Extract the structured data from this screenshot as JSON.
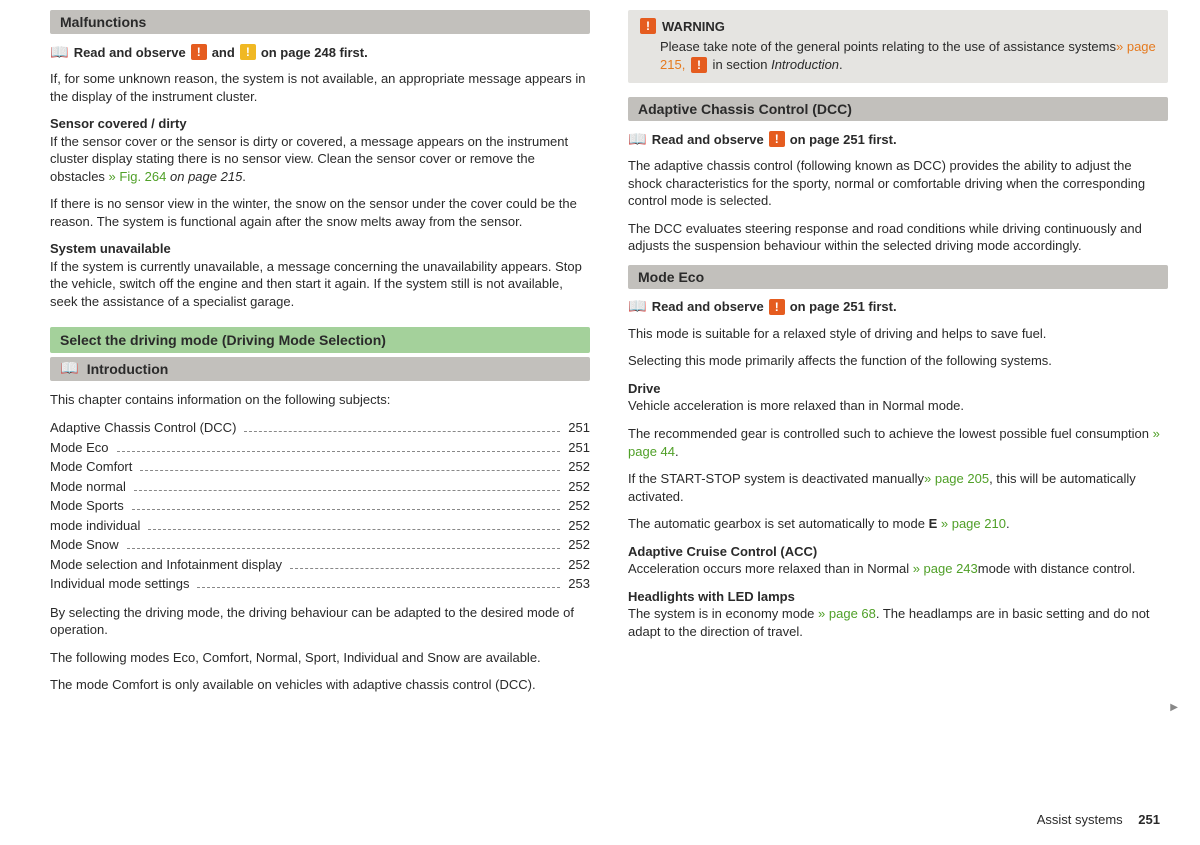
{
  "left": {
    "malfunctions": {
      "title": "Malfunctions",
      "ro_a": "Read and observe",
      "ro_b": "and",
      "ro_c": "on page 248 first.",
      "p1": "If, for some unknown reason, the system is not available, an appropriate mes­sage appears in the display of the instrument cluster.",
      "sub1": "Sensor covered / dirty",
      "p2a": "If the sensor cover or the sensor is dirty or covered, a message appears on the instrument cluster display stating there is no sensor view. Clean the sensor cover or remove the obstacles ",
      "p2link": "» Fig. 264",
      "p2b": " on page 215",
      "p2c": ".",
      "p3": "If there is no sensor view in the winter, the snow on the sensor under the cov­er could be the reason. The system is functional again after the snow melts away from the sensor.",
      "sub2": "System unavailable",
      "p4": "If the system is currently unavailable, a message concerning the unavailability appears. Stop the vehicle, switch off the engine and then start it again. If the system still is not available, seek the assistance of a specialist garage."
    },
    "green": "Select the driving mode (Driving Mode Selection)",
    "intro": {
      "title": "Introduction",
      "lead": "This chapter contains information on the following subjects:",
      "items": [
        {
          "label": "Adaptive Chassis Control (DCC)",
          "page": "251"
        },
        {
          "label": "Mode Eco",
          "page": "251"
        },
        {
          "label": "Mode Comfort",
          "page": "252"
        },
        {
          "label": "Mode normal",
          "page": "252"
        },
        {
          "label": "Mode Sports",
          "page": "252"
        },
        {
          "label": "mode individual",
          "page": "252"
        },
        {
          "label": "Mode Snow",
          "page": "252"
        },
        {
          "label": "Mode selection and Infotainment display",
          "page": "252"
        },
        {
          "label": "Individual mode settings",
          "page": "253"
        }
      ],
      "p1": "By selecting the driving mode, the driving behaviour can be adapted to the de­sired mode of operation.",
      "p2a": "The following modes ",
      "p2modes": "Eco, Comfort, Normal, Sport, Individual",
      "p2and": " and ",
      "p2snow": "Snow",
      "p2b": " are available.",
      "p3a": "The mode ",
      "p3mode": "Comfort",
      "p3b": " is only available on vehicles with adaptive chassis control (DCC)."
    }
  },
  "right": {
    "warning": {
      "title": "WARNING",
      "body_a": "Please take note of the general points relating to the use of assistance systems",
      "body_link": "» page 215,",
      "body_b": " in section ",
      "body_c": "Introduction",
      "body_d": "."
    },
    "dcc": {
      "title": "Adaptive Chassis Control (DCC)",
      "ro_a": "Read and observe",
      "ro_b": "on page 251 first.",
      "p1": "The adaptive chassis control (following known as DCC) provides the ability to adjust the shock characteristics for the sporty, normal or comfortable driving when the corresponding control mode is selected.",
      "p2": "The DCC evaluates steering response and road conditions while driving contin­uously and adjusts the suspension behaviour within the selected driving mode accordingly."
    },
    "eco": {
      "title": "Mode Eco",
      "ro_a": "Read and observe",
      "ro_b": "on page 251 first.",
      "p1": "This mode is suitable for a relaxed style of driving and helps to save fuel.",
      "p2": "Selecting this mode primarily affects the function of the following systems.",
      "drive_h": "Drive",
      "drive_a": "Vehicle acceleration is more relaxed than in ",
      "drive_mode": "Normal",
      "drive_b": " mode.",
      "drive_c": "The recommended gear is controlled such to achieve the lowest possible fuel consumption ",
      "drive_c_link": "» page 44",
      "drive_c2": ".",
      "drive_d1": "If the START-STOP system is deactivated manually",
      "drive_d_link": "» page 205",
      "drive_d2": ", this will be au­tomatically activated.",
      "drive_e1": "The automatic gearbox is set automatically to mode ",
      "drive_e_mode": "E",
      "drive_e_link": " » page 210",
      "drive_e2": ".",
      "acc_h": "Adaptive Cruise Control (ACC)",
      "acc_a": "Acceleration occurs more relaxed than in ",
      "acc_mode": "Normal",
      "acc_link": " » page 243",
      "acc_b": "mode with distance control.",
      "led_h": "Headlights with LED lamps",
      "led_a": "The system is in economy mode ",
      "led_link": "» page 68",
      "led_b": ". The headlamps are in basic setting and do not adapt to the direction of travel."
    }
  },
  "footer": {
    "section": "Assist systems",
    "page": "251"
  }
}
